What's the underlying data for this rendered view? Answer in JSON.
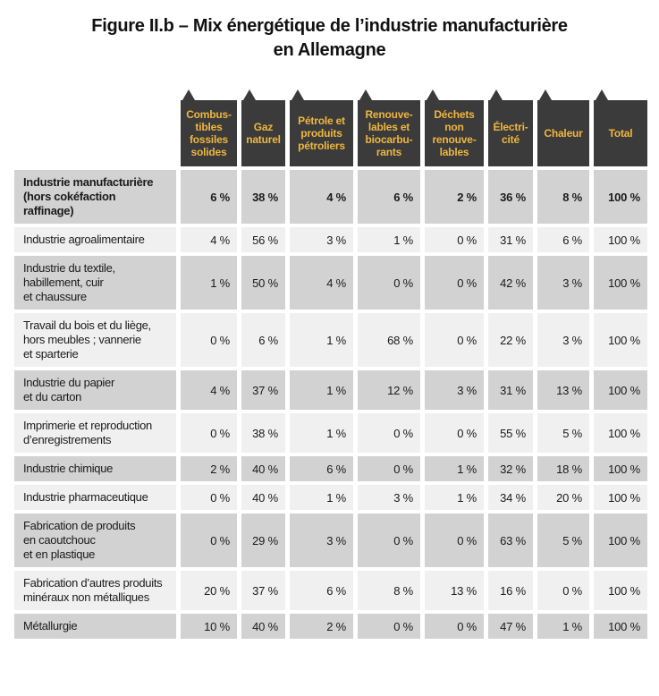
{
  "title": "Figure II.b – Mix énergétique de l’industrie manufacturière\nen Allemagne",
  "colors": {
    "header_background": "#3b3b3b",
    "header_text": "#efb63f",
    "row_gray": "#d2d2d2",
    "row_light": "#f0f0f0"
  },
  "table": {
    "columns": [
      {
        "label": "Combus-\ntibles\nfossiles\nsolides"
      },
      {
        "label": "Gaz\nnaturel"
      },
      {
        "label": "Pétrole et\nproduits\npétroliers"
      },
      {
        "label": "Renouve-\nlables et\nbiocarbu-\nrants"
      },
      {
        "label": "Déchets\nnon\nrenouve-\nlables"
      },
      {
        "label": "Électri-\ncité"
      },
      {
        "label": "Chaleur"
      },
      {
        "label": "Total"
      }
    ],
    "rows": [
      {
        "label": "Industrie manufacturière\n(hors cokéfaction\nraffinage)",
        "bold": true,
        "values": [
          "6 %",
          "38 %",
          "4 %",
          "6 %",
          "2 %",
          "36 %",
          "8 %",
          "100 %"
        ]
      },
      {
        "label": "Industrie agroalimentaire",
        "bold": false,
        "values": [
          "4 %",
          "56 %",
          "3 %",
          "1 %",
          "0 %",
          "31 %",
          "6 %",
          "100 %"
        ]
      },
      {
        "label": "Industrie du textile,\nhabillement, cuir\net chaussure",
        "bold": false,
        "values": [
          "1 %",
          "50 %",
          "4 %",
          "0 %",
          "0 %",
          "42 %",
          "3 %",
          "100 %"
        ]
      },
      {
        "label": "Travail du bois et du liège,\nhors meubles ; vannerie\net sparterie",
        "bold": false,
        "values": [
          "0 %",
          "6 %",
          "1 %",
          "68 %",
          "0 %",
          "22 %",
          "3 %",
          "100 %"
        ]
      },
      {
        "label": "Industrie du papier\net du carton",
        "bold": false,
        "values": [
          "4 %",
          "37 %",
          "1 %",
          "12 %",
          "3 %",
          "31 %",
          "13 %",
          "100 %"
        ]
      },
      {
        "label": "Imprimerie et reproduction\nd’enregistrements",
        "bold": false,
        "values": [
          "0 %",
          "38 %",
          "1 %",
          "0 %",
          "0 %",
          "55 %",
          "5 %",
          "100 %"
        ]
      },
      {
        "label": "Industrie chimique",
        "bold": false,
        "values": [
          "2 %",
          "40 %",
          "6 %",
          "0 %",
          "1 %",
          "32 %",
          "18 %",
          "100 %"
        ]
      },
      {
        "label": "Industrie pharmaceutique",
        "bold": false,
        "values": [
          "0 %",
          "40 %",
          "1 %",
          "3 %",
          "1 %",
          "34 %",
          "20 %",
          "100 %"
        ]
      },
      {
        "label": "Fabrication de produits\nen caoutchouc\net en plastique",
        "bold": false,
        "values": [
          "0 %",
          "29 %",
          "3 %",
          "0 %",
          "0 %",
          "63 %",
          "5 %",
          "100 %"
        ]
      },
      {
        "label": "Fabrication d’autres produits\nminéraux non métalliques",
        "bold": false,
        "values": [
          "20 %",
          "37 %",
          "6 %",
          "8 %",
          "13 %",
          "16 %",
          "0 %",
          "100 %"
        ]
      },
      {
        "label": "Métallurgie",
        "bold": false,
        "values": [
          "10 %",
          "40 %",
          "2 %",
          "0 %",
          "0 %",
          "47 %",
          "1 %",
          "100 %"
        ]
      }
    ]
  },
  "chart_data": {
    "type": "table",
    "title": "Figure II.b – Mix énergétique de l’industrie manufacturière en Allemagne",
    "unit": "%",
    "columns": [
      "Combustibles fossiles solides",
      "Gaz naturel",
      "Pétrole et produits pétroliers",
      "Renouvelables et biocarburants",
      "Déchets non renouvelables",
      "Électricité",
      "Chaleur",
      "Total"
    ],
    "row_labels": [
      "Industrie manufacturière (hors cokéfaction raffinage)",
      "Industrie agroalimentaire",
      "Industrie du textile, habillement, cuir et chaussure",
      "Travail du bois et du liège, hors meubles ; vannerie et sparterie",
      "Industrie du papier et du carton",
      "Imprimerie et reproduction d’enregistrements",
      "Industrie chimique",
      "Industrie pharmaceutique",
      "Fabrication de produits en caoutchouc et en plastique",
      "Fabrication d’autres produits minéraux non métalliques",
      "Métallurgie"
    ],
    "values": [
      [
        6,
        38,
        4,
        6,
        2,
        36,
        8,
        100
      ],
      [
        4,
        56,
        3,
        1,
        0,
        31,
        6,
        100
      ],
      [
        1,
        50,
        4,
        0,
        0,
        42,
        3,
        100
      ],
      [
        0,
        6,
        1,
        68,
        0,
        22,
        3,
        100
      ],
      [
        4,
        37,
        1,
        12,
        3,
        31,
        13,
        100
      ],
      [
        0,
        38,
        1,
        0,
        0,
        55,
        5,
        100
      ],
      [
        2,
        40,
        6,
        0,
        1,
        32,
        18,
        100
      ],
      [
        0,
        40,
        1,
        3,
        1,
        34,
        20,
        100
      ],
      [
        0,
        29,
        3,
        0,
        0,
        63,
        5,
        100
      ],
      [
        20,
        37,
        6,
        8,
        13,
        16,
        0,
        100
      ],
      [
        10,
        40,
        2,
        0,
        0,
        47,
        1,
        100
      ]
    ]
  }
}
